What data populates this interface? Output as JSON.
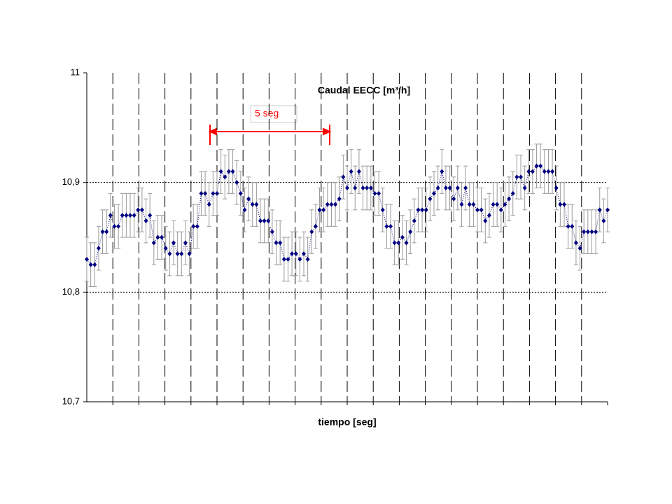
{
  "chart_data": {
    "type": "scatter",
    "title": "Caudal EECC [m³/h]",
    "xlabel": "tiempo [seg]",
    "annotation": "5 seg",
    "color": "#000080",
    "error_color": "#999999",
    "error": 0.02,
    "values": [
      10.83,
      10.825,
      10.825,
      10.84,
      10.855,
      10.855,
      10.87,
      10.86,
      10.86,
      10.87,
      10.87,
      10.87,
      10.87,
      10.875,
      10.875,
      10.865,
      10.87,
      10.845,
      10.85,
      10.85,
      10.84,
      10.835,
      10.845,
      10.835,
      10.835,
      10.845,
      10.835,
      10.86,
      10.86,
      10.89,
      10.89,
      10.88,
      10.89,
      10.89,
      10.91,
      10.905,
      10.91,
      10.91,
      10.9,
      10.89,
      10.875,
      10.885,
      10.88,
      10.88,
      10.865,
      10.865,
      10.865,
      10.855,
      10.845,
      10.845,
      10.83,
      10.83,
      10.835,
      10.835,
      10.83,
      10.835,
      10.83,
      10.855,
      10.86,
      10.875,
      10.875,
      10.88,
      10.88,
      10.88,
      10.885,
      10.905,
      10.895,
      10.91,
      10.895,
      10.91,
      10.895,
      10.895,
      10.895,
      10.89,
      10.89,
      10.875,
      10.86,
      10.86,
      10.845,
      10.845,
      10.85,
      10.845,
      10.855,
      10.865,
      10.875,
      10.875,
      10.875,
      10.885,
      10.89,
      10.895,
      10.91,
      10.895,
      10.895,
      10.885,
      10.895,
      10.88,
      10.895,
      10.88,
      10.88,
      10.875,
      10.875,
      10.865,
      10.87,
      10.88,
      10.88,
      10.875,
      10.88,
      10.885,
      10.89,
      10.905,
      10.905,
      10.895,
      10.91,
      10.91,
      10.915,
      10.915,
      10.91,
      10.91,
      10.91,
      10.895,
      10.88,
      10.88,
      10.86,
      10.86,
      10.845,
      10.84,
      10.855,
      10.855,
      10.855,
      10.855,
      10.875,
      10.865,
      10.875
    ],
    "xlim": [
      0,
      132
    ],
    "xticks": [
      6.6,
      13.2,
      19.8,
      26.4,
      33,
      39.6,
      46.2,
      52.8,
      59.4,
      66,
      72.6,
      79.2,
      85.8,
      92.4,
      99,
      105.6,
      112.2,
      118.8,
      125.4
    ],
    "ylim": [
      10.7,
      11
    ],
    "yticks": [
      {
        "value": 10.7,
        "label": "10,7"
      },
      {
        "value": 10.8,
        "label": "10,8"
      },
      {
        "value": 10.9,
        "label": "10,9"
      },
      {
        "value": 11,
        "label": "11"
      }
    ],
    "grid": true
  }
}
